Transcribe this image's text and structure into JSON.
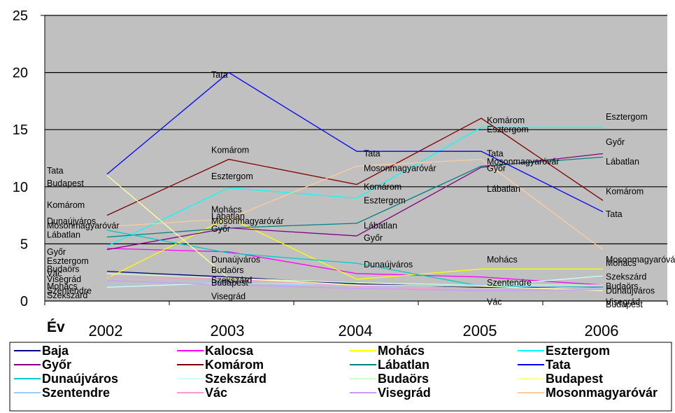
{
  "chart_data": {
    "type": "line",
    "ylabel": "Év",
    "categories": [
      "2002",
      "2003",
      "2004",
      "2005",
      "2006"
    ],
    "ylim": [
      0,
      25
    ],
    "yticks": [
      "0",
      "5",
      "10",
      "15",
      "20",
      "25"
    ],
    "grid": true,
    "legend_position": "bottom",
    "plot_background": "#c0c0c0",
    "series": [
      {
        "name": "Baja",
        "color": "#000080",
        "values": [
          2.6,
          2.1,
          1.5,
          1.2,
          1.2
        ]
      },
      {
        "name": "Kalocsa",
        "color": "#ff00ff",
        "values": [
          4.6,
          4.3,
          2.4,
          2.1,
          1.4
        ]
      },
      {
        "name": "Mohács",
        "color": "#ffff00",
        "values": [
          2.0,
          7.3,
          1.9,
          2.8,
          2.8
        ]
      },
      {
        "name": "Esztergom",
        "color": "#00ffff",
        "values": [
          4.8,
          9.9,
          9.0,
          15.2,
          15.2
        ]
      },
      {
        "name": "Győr",
        "color": "#800080",
        "values": [
          4.5,
          6.4,
          5.7,
          11.7,
          12.9
        ]
      },
      {
        "name": "Komárom",
        "color": "#800000",
        "values": [
          7.5,
          12.4,
          10.2,
          16.0,
          8.8
        ]
      },
      {
        "name": "Lábatlan",
        "color": "#008080",
        "values": [
          5.6,
          6.4,
          6.8,
          11.8,
          12.6
        ]
      },
      {
        "name": "Tata",
        "color": "#0000ff",
        "values": [
          11.1,
          20.0,
          13.1,
          13.1,
          7.8
        ]
      },
      {
        "name": "Dunaújváros",
        "color": "#00cccc",
        "values": [
          6.2,
          4.2,
          3.3,
          1.3,
          1.2
        ]
      },
      {
        "name": "Szekszárd",
        "color": "#ccffff",
        "values": [
          1.2,
          1.6,
          1.4,
          1.3,
          2.2
        ]
      },
      {
        "name": "Budaörs",
        "color": "#ccffcc",
        "values": [
          2.4,
          2.0,
          1.6,
          1.4,
          1.4
        ]
      },
      {
        "name": "Budapest",
        "color": "#ffff99",
        "values": [
          11.0,
          2.0,
          1.4,
          1.3,
          0.9
        ]
      },
      {
        "name": "Szentendre",
        "color": "#99ccff",
        "values": [
          1.5,
          1.6,
          1.3,
          1.4,
          1.1
        ]
      },
      {
        "name": "Vác",
        "color": "#ff99cc",
        "values": [
          2.1,
          1.9,
          1.3,
          0.9,
          1.0
        ]
      },
      {
        "name": "Visegrád",
        "color": "#cc99ff",
        "values": [
          1.8,
          1.4,
          1.1,
          0.9,
          1.0
        ]
      },
      {
        "name": "Mosonmagyaróvár",
        "color": "#ffcc99",
        "values": [
          6.5,
          7.2,
          11.8,
          12.4,
          4.5
        ]
      }
    ],
    "point_labels": [
      {
        "text": "Tata",
        "x": "2002",
        "y": 11.4
      },
      {
        "text": "Budapest",
        "x": "2002",
        "y": 10.3
      },
      {
        "text": "Komárom",
        "x": "2002",
        "y": 8.4
      },
      {
        "text": "Dunaújváros",
        "x": "2002",
        "y": 7.0
      },
      {
        "text": "Lábatlan",
        "x": "2002",
        "y": 5.8
      },
      {
        "text": "Győr",
        "x": "2002",
        "y": 4.3
      },
      {
        "text": "Esztergom",
        "x": "2002",
        "y": 3.5
      },
      {
        "text": "Visegrád",
        "x": "2002",
        "y": 1.9
      },
      {
        "text": "Vác",
        "x": "2002",
        "y": 2.4
      },
      {
        "text": "Budaörs",
        "x": "2002",
        "y": 2.8
      },
      {
        "text": "Szentendre",
        "x": "2002",
        "y": 0.9
      },
      {
        "text": "Mohács",
        "x": "2002",
        "y": 1.3
      },
      {
        "text": "Szekszárd",
        "x": "2002",
        "y": 0.5
      },
      {
        "text": "Mosonmagyaróvár",
        "x": "2002",
        "y": 6.6
      },
      {
        "text": "Tata",
        "x": "2003",
        "y": 19.8
      },
      {
        "text": "Komárom",
        "x": "2003",
        "y": 13.2
      },
      {
        "text": "Esztergom",
        "x": "2003",
        "y": 10.9
      },
      {
        "text": "Mohács",
        "x": "2003",
        "y": 8.0
      },
      {
        "text": "Lábatlan",
        "x": "2003",
        "y": 7.4
      },
      {
        "text": "Mosonmagyaróvár",
        "x": "2003",
        "y": 7.0
      },
      {
        "text": "Győr",
        "x": "2003",
        "y": 6.3
      },
      {
        "text": "Dunaújváros",
        "x": "2003",
        "y": 3.6
      },
      {
        "text": "Budaörs",
        "x": "2003",
        "y": 2.7
      },
      {
        "text": "Szekszárd",
        "x": "2003",
        "y": 1.8
      },
      {
        "text": "Budapest",
        "x": "2003",
        "y": 1.6
      },
      {
        "text": "Visegrád",
        "x": "2003",
        "y": 0.4
      },
      {
        "text": "Tata",
        "x": "2004",
        "y": 12.9
      },
      {
        "text": "Mosonmagyaróvár",
        "x": "2004",
        "y": 11.6
      },
      {
        "text": "Komárom",
        "x": "2004",
        "y": 10.0
      },
      {
        "text": "Esztergom",
        "x": "2004",
        "y": 8.8
      },
      {
        "text": "Lábatlan",
        "x": "2004",
        "y": 6.6
      },
      {
        "text": "Győr",
        "x": "2004",
        "y": 5.5
      },
      {
        "text": "Dunaújváros",
        "x": "2004",
        "y": 3.2
      },
      {
        "text": "Komárom",
        "x": "2005",
        "y": 15.8
      },
      {
        "text": "Esztergom",
        "x": "2005",
        "y": 15.0
      },
      {
        "text": "Tata",
        "x": "2005",
        "y": 12.9
      },
      {
        "text": "Mosonmagyaróvár",
        "x": "2005",
        "y": 12.2
      },
      {
        "text": "Győr",
        "x": "2005",
        "y": 11.6
      },
      {
        "text": "Lábatlan",
        "x": "2005",
        "y": 9.8
      },
      {
        "text": "Mohács",
        "x": "2005",
        "y": 3.6
      },
      {
        "text": "Szentendre",
        "x": "2005",
        "y": 1.6
      },
      {
        "text": "Vác",
        "x": "2005",
        "y": -0.1
      },
      {
        "text": "Esztergom",
        "x": "2006",
        "y": 16.1
      },
      {
        "text": "Győr",
        "x": "2006",
        "y": 13.9
      },
      {
        "text": "Lábatlan",
        "x": "2006",
        "y": 12.2
      },
      {
        "text": "Komárom",
        "x": "2006",
        "y": 9.6
      },
      {
        "text": "Tata",
        "x": "2006",
        "y": 7.6
      },
      {
        "text": "Mosonmagyaróvár",
        "x": "2006",
        "y": 3.6
      },
      {
        "text": "Mohács",
        "x": "2006",
        "y": 3.3
      },
      {
        "text": "Szekszárd",
        "x": "2006",
        "y": 2.1
      },
      {
        "text": "Budaörs",
        "x": "2006",
        "y": 1.3
      },
      {
        "text": "Dunaújváros",
        "x": "2006",
        "y": 0.9
      },
      {
        "text": "Visegrád",
        "x": "2006",
        "y": -0.1
      },
      {
        "text": "Budapest",
        "x": "2006",
        "y": -0.3
      }
    ]
  }
}
